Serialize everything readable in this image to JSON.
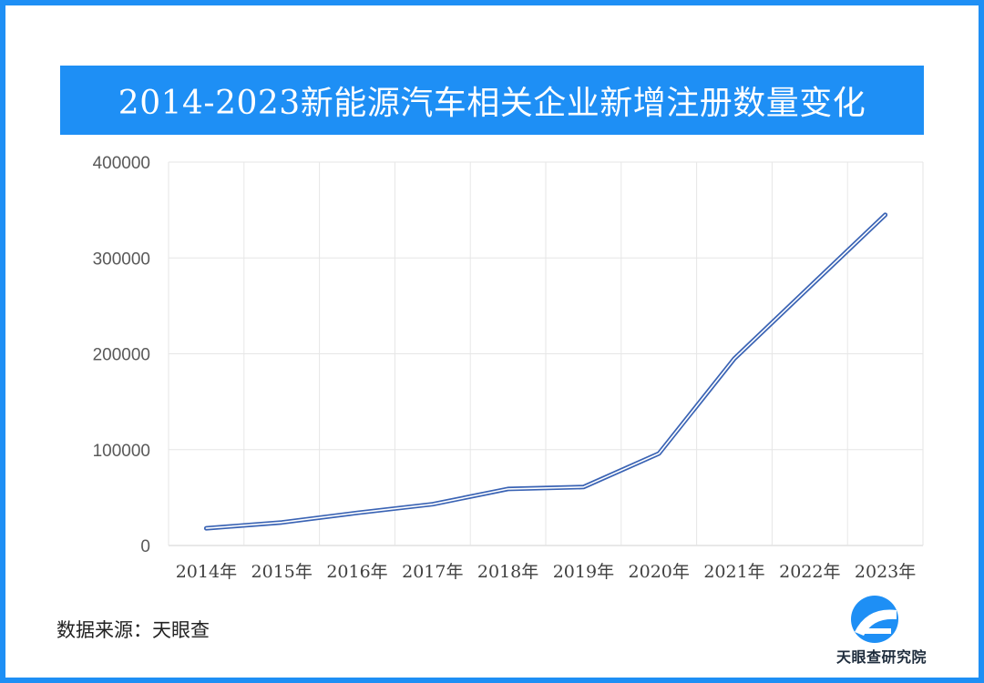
{
  "title": "2014-2023新能源汽车相关企业新增注册数量变化",
  "source_label": "数据来源：天眼查",
  "logo_text": "天眼查研究院",
  "colors": {
    "accent": "#1e8ff5",
    "line": "#3a63b4",
    "grid": "#e6e6e6"
  },
  "chart_data": {
    "type": "line",
    "title": "2014-2023新能源汽车相关企业新增注册数量变化",
    "xlabel": "",
    "ylabel": "",
    "categories": [
      "2014年",
      "2015年",
      "2016年",
      "2017年",
      "2018年",
      "2019年",
      "2020年",
      "2021年",
      "2022年",
      "2023年"
    ],
    "series": [
      {
        "values": [
          18000,
          24000,
          34000,
          43000,
          59000,
          61000,
          96000,
          195000,
          270000,
          345000
        ]
      }
    ],
    "ylim": [
      0,
      400000
    ],
    "yticks": [
      "400000",
      "300000",
      "200000",
      "100000",
      "0"
    ],
    "grid": true,
    "legend": "none"
  }
}
